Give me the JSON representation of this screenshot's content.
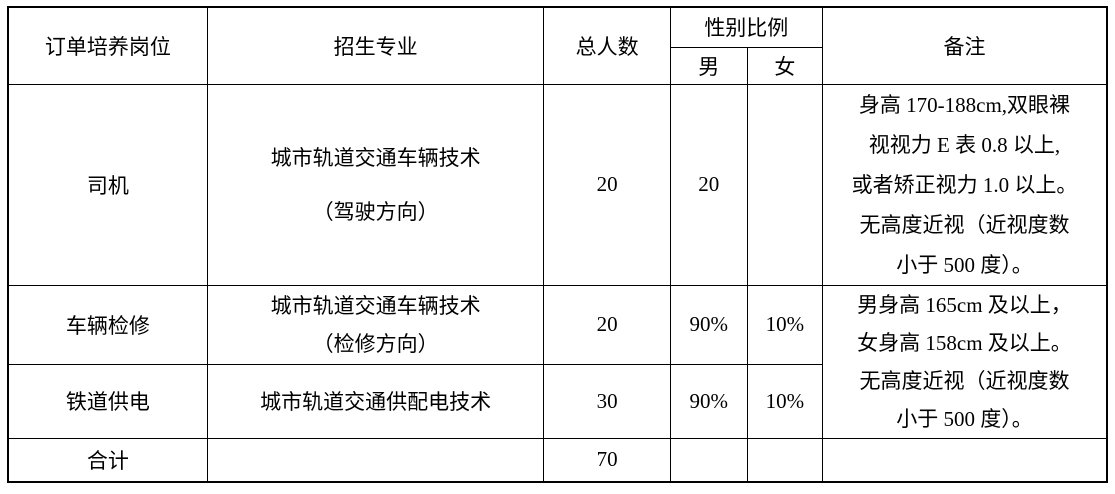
{
  "table": {
    "headers": {
      "position": "订单培养岗位",
      "major": "招生专业",
      "total": "总人数",
      "gender_ratio": "性别比例",
      "male": "男",
      "female": "女",
      "remarks": "备注"
    },
    "rows": [
      {
        "position": "司机",
        "major_lines": [
          "城市轨道交通车辆技术",
          "（驾驶方向）"
        ],
        "total": "20",
        "male": "20",
        "female": "",
        "remark_lines": [
          "身高 170-188cm,双眼裸",
          "视视力 E 表 0.8 以上,",
          "或者矫正视力 1.0 以上。",
          "无高度近视（近视度数",
          "小于 500 度）。"
        ]
      },
      {
        "position": "车辆检修",
        "major_lines": [
          "城市轨道交通车辆技术",
          "（检修方向）"
        ],
        "total": "20",
        "male": "90%",
        "female": "10%",
        "remark_lines": [
          "男身高 165cm 及以上，",
          "女身高 158cm 及以上。",
          "无高度近视（近视度数",
          "小于 500 度）。"
        ]
      },
      {
        "position": "铁道供电",
        "major_lines": [
          "城市轨道交通供配电技术"
        ],
        "total": "30",
        "male": "90%",
        "female": "10%"
      },
      {
        "position": "合计",
        "major": "",
        "total": "70",
        "male": "",
        "female": "",
        "remarks": ""
      }
    ]
  }
}
